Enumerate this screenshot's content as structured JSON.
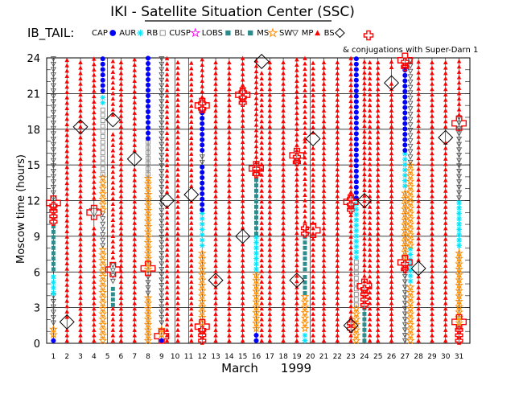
{
  "chart_data": {
    "type": "scatter",
    "title": "IKI - Satellite Situation Center (SSC)",
    "tag": "IB_TAIL:",
    "conjugation_note": "& conjugations with Super-Darn 1",
    "xlabel_month": "March",
    "xlabel_year": "1999",
    "ylabel": "Moscow time (hours)",
    "x_range": [
      1,
      31
    ],
    "ylim": [
      0,
      24
    ],
    "x_ticks": [
      "1",
      "2",
      "3",
      "4",
      "5",
      "6",
      "7",
      "8",
      "9",
      "10",
      "11",
      "12",
      "13",
      "14",
      "15",
      "16",
      "17",
      "18",
      "19",
      "20",
      "21",
      "22",
      "23",
      "24",
      "25",
      "26",
      "27",
      "28",
      "29",
      "30",
      "31"
    ],
    "y_ticks": [
      "0",
      "3",
      "6",
      "9",
      "12",
      "15",
      "18",
      "21",
      "24"
    ],
    "legend": [
      {
        "key": "CAP",
        "label": "CAP",
        "color": "#0000ff"
      },
      {
        "key": "AUR",
        "label": "AUR",
        "color": "#00e5ff"
      },
      {
        "key": "RB",
        "label": "RB",
        "color": "#888888"
      },
      {
        "key": "CUSP",
        "label": "CUSP",
        "color": "#ff00ff"
      },
      {
        "key": "LOBS",
        "label": "LOBS",
        "color": "#2e8b8b"
      },
      {
        "key": "BL",
        "label": "BL",
        "color": "#ff8c00"
      },
      {
        "key": "MS",
        "label": "MS",
        "color": "#555555"
      },
      {
        "key": "SW",
        "label": "SW",
        "color": "#ff0000"
      },
      {
        "key": "MP",
        "label": "MP",
        "color": "#000000"
      },
      {
        "key": "BS",
        "label": "BS",
        "color": "#ff0000"
      }
    ],
    "colors": {
      "CAP": "#0000ff",
      "AUR": "#00e5ff",
      "RB": "#888888",
      "CUSP": "#ff00ff",
      "LOBS": "#2e8b8b",
      "BL": "#ff8c00",
      "MS": "#555555",
      "SW": "#ff0000",
      "MP": "#000000",
      "BS": "#ff0000"
    },
    "series": [
      {
        "x": 1,
        "segments": [
          [
            0,
            0.5,
            "CAP"
          ],
          [
            0.5,
            1.5,
            "BL"
          ],
          [
            1.5,
            4,
            "MS"
          ],
          [
            4,
            6,
            "AUR"
          ],
          [
            6,
            10,
            "LOBS"
          ],
          [
            10,
            12,
            "BS"
          ],
          [
            12,
            24,
            "MS"
          ]
        ]
      },
      {
        "x": 2,
        "segments": [
          [
            0,
            1.5,
            "SW"
          ],
          [
            2,
            24,
            "SW"
          ]
        ]
      },
      {
        "x": 3,
        "segments": [
          [
            0,
            24,
            "SW"
          ]
        ]
      },
      {
        "x": 4,
        "segments": [
          [
            0,
            10,
            "SW"
          ],
          [
            12,
            24,
            "SW"
          ]
        ]
      },
      {
        "x": 4.65,
        "segments": [
          [
            0,
            8,
            "BL"
          ],
          [
            8,
            11,
            "MS"
          ],
          [
            11,
            14,
            "BL"
          ],
          [
            14,
            20,
            "RB"
          ],
          [
            20,
            21,
            "AUR"
          ],
          [
            21,
            24,
            "CAP"
          ]
        ]
      },
      {
        "x": 5.4,
        "segments": [
          [
            0,
            3,
            "SW"
          ],
          [
            3,
            5,
            "LOBS"
          ],
          [
            5,
            7,
            "MS"
          ],
          [
            7,
            18,
            "SW"
          ],
          [
            19,
            24,
            "SW"
          ]
        ]
      },
      {
        "x": 6,
        "segments": [
          [
            0,
            24,
            "SW"
          ]
        ]
      },
      {
        "x": 7,
        "segments": [
          [
            0,
            15,
            "SW"
          ],
          [
            16,
            24,
            "SW"
          ]
        ]
      },
      {
        "x": 8,
        "segments": [
          [
            0,
            4,
            "BL"
          ],
          [
            4,
            6,
            "MS"
          ],
          [
            6,
            14,
            "BL"
          ],
          [
            14,
            17,
            "RB"
          ],
          [
            17,
            24,
            "CAP"
          ]
        ]
      },
      {
        "x": 9,
        "segments": [
          [
            0,
            0.5,
            "CAP"
          ],
          [
            0.5,
            1.5,
            "BL"
          ],
          [
            1.5,
            12,
            "MS"
          ],
          [
            12,
            24,
            "MS"
          ]
        ]
      },
      {
        "x": 9.4,
        "segments": [
          [
            0,
            11.5,
            "SW"
          ],
          [
            12.5,
            24,
            "SW"
          ]
        ]
      },
      {
        "x": 10.2,
        "segments": [
          [
            0,
            24,
            "SW"
          ]
        ]
      },
      {
        "x": 11.2,
        "segments": [
          [
            0,
            12,
            "SW"
          ],
          [
            13,
            24,
            "SW"
          ]
        ]
      },
      {
        "x": 12,
        "segments": [
          [
            0,
            1.5,
            "BS"
          ],
          [
            1.5,
            8,
            "BL"
          ],
          [
            8,
            11,
            "AUR"
          ],
          [
            11,
            15,
            "CAP"
          ],
          [
            15,
            16,
            "MS"
          ],
          [
            16,
            19.5,
            "CAP"
          ],
          [
            19.5,
            20.5,
            "BS"
          ],
          [
            20.5,
            24,
            "SW"
          ]
        ]
      },
      {
        "x": 13,
        "segments": [
          [
            0,
            24,
            "SW"
          ]
        ]
      },
      {
        "x": 14,
        "segments": [
          [
            0,
            24,
            "SW"
          ]
        ]
      },
      {
        "x": 15,
        "segments": [
          [
            0,
            8.5,
            "SW"
          ],
          [
            9.5,
            20,
            "SW"
          ],
          [
            20,
            21.5,
            "BS"
          ],
          [
            21.5,
            24,
            "SW"
          ]
        ]
      },
      {
        "x": 16,
        "segments": [
          [
            0,
            1,
            "CAP"
          ],
          [
            1,
            6,
            "BL"
          ],
          [
            6,
            9,
            "AUR"
          ],
          [
            9,
            14,
            "LOBS"
          ],
          [
            14,
            15,
            "BS"
          ],
          [
            15,
            24,
            "SW"
          ]
        ]
      },
      {
        "x": 16.4,
        "segments": [
          [
            0,
            23,
            "SW"
          ]
        ]
      },
      {
        "x": 17,
        "segments": [
          [
            0,
            24,
            "SW"
          ]
        ]
      },
      {
        "x": 18,
        "segments": [
          [
            0,
            24,
            "SW"
          ]
        ]
      },
      {
        "x": 19,
        "segments": [
          [
            0,
            5,
            "SW"
          ],
          [
            5,
            15,
            "SW"
          ],
          [
            15,
            16,
            "BS"
          ],
          [
            16,
            24,
            "SW"
          ]
        ]
      },
      {
        "x": 19.6,
        "segments": [
          [
            0,
            1,
            "AUR"
          ],
          [
            1,
            4,
            "BL"
          ],
          [
            4,
            6,
            "LOBS"
          ],
          [
            6,
            9,
            "LOBS"
          ],
          [
            9,
            10,
            "BS"
          ],
          [
            10,
            17,
            "SW"
          ],
          [
            17,
            24,
            "SW"
          ]
        ]
      },
      {
        "x": 20.2,
        "segments": [
          [
            0,
            16.5,
            "SW"
          ],
          [
            17.5,
            24,
            "SW"
          ]
        ]
      },
      {
        "x": 21,
        "segments": [
          [
            0,
            24,
            "SW"
          ]
        ]
      },
      {
        "x": 22,
        "segments": [
          [
            0,
            24,
            "SW"
          ]
        ]
      },
      {
        "x": 23,
        "segments": [
          [
            0,
            1,
            "SW"
          ],
          [
            1,
            2,
            "BS"
          ],
          [
            2,
            11,
            "SW"
          ],
          [
            11,
            12.5,
            "BS"
          ],
          [
            12.5,
            24,
            "SW"
          ]
        ]
      },
      {
        "x": 23.4,
        "segments": [
          [
            0,
            3,
            "BL"
          ],
          [
            3,
            7,
            "RB"
          ],
          [
            7,
            12,
            "AUR"
          ],
          [
            12,
            24,
            "CAP"
          ]
        ]
      },
      {
        "x": 24,
        "segments": [
          [
            0,
            3,
            "LOBS"
          ],
          [
            3,
            5,
            "BS"
          ],
          [
            5,
            24,
            "SW"
          ]
        ]
      },
      {
        "x": 24.4,
        "segments": [
          [
            0,
            24,
            "SW"
          ]
        ]
      },
      {
        "x": 25,
        "segments": [
          [
            0,
            24,
            "SW"
          ]
        ]
      },
      {
        "x": 26,
        "segments": [
          [
            0,
            22,
            "SW"
          ],
          [
            23,
            24,
            "SW"
          ]
        ]
      },
      {
        "x": 27,
        "segments": [
          [
            0,
            6,
            "MS"
          ],
          [
            6,
            7,
            "BS"
          ],
          [
            7,
            13,
            "BL"
          ],
          [
            13,
            16,
            "AUR"
          ],
          [
            16,
            23,
            "CAP"
          ],
          [
            23,
            24,
            "BS"
          ]
        ]
      },
      {
        "x": 27.4,
        "segments": [
          [
            0,
            5,
            "BL"
          ],
          [
            5,
            8,
            "AUR"
          ],
          [
            8,
            15,
            "BL"
          ],
          [
            15,
            24,
            "MS"
          ]
        ]
      },
      {
        "x": 28,
        "segments": [
          [
            0,
            6,
            "SW"
          ],
          [
            6.8,
            24,
            "SW"
          ]
        ]
      },
      {
        "x": 29,
        "segments": [
          [
            0,
            24,
            "SW"
          ]
        ]
      },
      {
        "x": 30,
        "segments": [
          [
            0,
            17,
            "SW"
          ],
          [
            18,
            24,
            "SW"
          ]
        ]
      },
      {
        "x": 31,
        "segments": [
          [
            0,
            1.5,
            "BS"
          ],
          [
            1.5,
            8,
            "BL"
          ],
          [
            8,
            12,
            "AUR"
          ],
          [
            12,
            19,
            "MS"
          ],
          [
            19,
            24,
            "SW"
          ]
        ]
      }
    ],
    "markers": [
      {
        "x": 1,
        "y": 11.8,
        "type": "BS"
      },
      {
        "x": 2,
        "y": 1.8,
        "type": "MP"
      },
      {
        "x": 3,
        "y": 18.2,
        "type": "MP"
      },
      {
        "x": 4,
        "y": 11,
        "type": "MS"
      },
      {
        "x": 4,
        "y": 11,
        "type": "BS"
      },
      {
        "x": 5.4,
        "y": 6.2,
        "type": "BS"
      },
      {
        "x": 5.4,
        "y": 18.8,
        "type": "MP"
      },
      {
        "x": 7,
        "y": 15.5,
        "type": "MP"
      },
      {
        "x": 8,
        "y": 6.3,
        "type": "BS"
      },
      {
        "x": 9,
        "y": 0.6,
        "type": "BS"
      },
      {
        "x": 9.4,
        "y": 12,
        "type": "MP"
      },
      {
        "x": 11.2,
        "y": 12.5,
        "type": "MP"
      },
      {
        "x": 12,
        "y": 1.4,
        "type": "BS"
      },
      {
        "x": 12,
        "y": 20,
        "type": "BS"
      },
      {
        "x": 13,
        "y": 5.3,
        "type": "MP"
      },
      {
        "x": 15,
        "y": 9,
        "type": "MP"
      },
      {
        "x": 15,
        "y": 20.9,
        "type": "BS"
      },
      {
        "x": 16,
        "y": 14.7,
        "type": "BS"
      },
      {
        "x": 16.4,
        "y": 23.7,
        "type": "MP"
      },
      {
        "x": 19,
        "y": 5.3,
        "type": "MP"
      },
      {
        "x": 19,
        "y": 15.8,
        "type": "BS"
      },
      {
        "x": 20.2,
        "y": 9.5,
        "type": "BS"
      },
      {
        "x": 20.2,
        "y": 17.2,
        "type": "MP"
      },
      {
        "x": 23,
        "y": 1.5,
        "type": "MP"
      },
      {
        "x": 23,
        "y": 11.9,
        "type": "BS"
      },
      {
        "x": 24,
        "y": 4.8,
        "type": "BS"
      },
      {
        "x": 24,
        "y": 12,
        "type": "MP"
      },
      {
        "x": 26,
        "y": 21.9,
        "type": "MP"
      },
      {
        "x": 27,
        "y": 6.8,
        "type": "BS"
      },
      {
        "x": 27,
        "y": 23.8,
        "type": "BS"
      },
      {
        "x": 28,
        "y": 6.3,
        "type": "MP"
      },
      {
        "x": 30,
        "y": 17.3,
        "type": "MP"
      },
      {
        "x": 31,
        "y": 1.8,
        "type": "BS"
      },
      {
        "x": 31,
        "y": 18.5,
        "type": "BS"
      }
    ]
  }
}
